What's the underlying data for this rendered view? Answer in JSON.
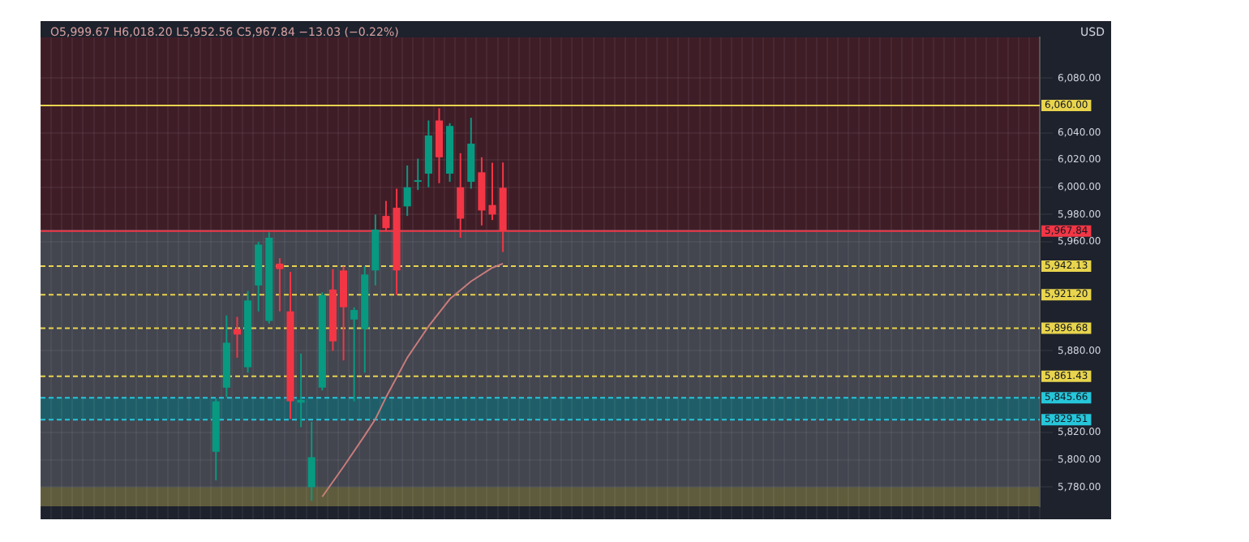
{
  "chart_data": {
    "type": "candlestick",
    "ylabel": "USD",
    "annotations": [
      "O5,999.67 H6,018.20 L5,952.56 C5,967.84 −13.03 (−0.22%)"
    ],
    "categories": [
      null,
      null,
      null,
      null,
      null,
      null,
      null,
      null,
      null,
      null,
      null,
      null,
      null,
      null,
      null,
      null,
      null,
      null,
      null,
      null,
      null,
      null,
      null,
      null,
      null,
      null,
      null,
      null,
      null,
      null,
      null,
      null,
      null,
      null,
      null,
      null,
      null,
      null,
      null,
      null,
      null,
      null,
      null,
      null,
      null,
      null,
      null,
      null,
      null,
      null,
      null,
      null,
      null,
      null,
      null,
      null,
      null,
      null,
      null,
      null,
      null,
      null,
      null,
      null,
      null,
      null,
      null,
      null,
      null,
      null,
      null,
      null,
      null,
      null,
      null,
      null,
      null,
      null,
      null,
      null,
      null,
      null,
      null,
      null,
      null,
      null,
      null,
      null,
      null,
      null,
      null,
      null,
      null,
      null
    ],
    "ohlc": [
      null,
      null,
      null,
      null,
      null,
      null,
      null,
      null,
      null,
      null,
      null,
      null,
      null,
      null,
      null,
      null,
      [
        5806,
        5845,
        5785,
        5843
      ],
      [
        5853,
        5906,
        5846,
        5886
      ],
      [
        5896,
        5905,
        5875,
        5892
      ],
      [
        5868,
        5924,
        5864,
        5917
      ],
      [
        5928,
        5960,
        5909,
        5958
      ],
      [
        5902,
        5967,
        5900,
        5963
      ],
      [
        5944,
        5948,
        5909,
        5940
      ],
      [
        5909,
        5938,
        5830,
        5843
      ],
      [
        5842,
        5878,
        5824,
        5844
      ],
      [
        5780,
        5828,
        5770,
        5802
      ],
      [
        5853,
        5923,
        5851,
        5921
      ],
      [
        5925,
        5940,
        5880,
        5887
      ],
      [
        5939,
        5942,
        5873,
        5912
      ],
      [
        5903,
        5912,
        5843,
        5910
      ],
      [
        5896,
        5942,
        5864,
        5936
      ],
      [
        5939,
        5980,
        5928,
        5969
      ],
      [
        5979,
        5990,
        5968,
        5970
      ],
      [
        5985,
        5999,
        5921,
        5939
      ],
      [
        5986,
        6016,
        5979,
        6000
      ],
      [
        6004,
        6021,
        5998,
        6005
      ],
      [
        6010,
        6049,
        6000,
        6038
      ],
      [
        6049,
        6058,
        6003,
        6022
      ],
      [
        6010,
        6047,
        6004,
        6045
      ],
      [
        6000,
        6025,
        5963,
        5977
      ],
      [
        6004,
        6051,
        5999,
        6032
      ],
      [
        6011,
        6022,
        5972,
        5983
      ],
      [
        5987,
        6018,
        5976,
        5980
      ],
      [
        5999.67,
        6018.2,
        5952.56,
        5967.84
      ],
      null,
      null,
      null,
      null,
      null,
      null,
      null,
      null,
      null,
      null,
      null,
      null,
      null,
      null,
      null,
      null,
      null,
      null,
      null,
      null,
      null,
      null,
      null,
      null,
      null,
      null,
      null,
      null,
      null,
      null,
      null,
      null,
      null,
      null,
      null,
      null,
      null,
      null,
      null,
      null,
      null,
      null,
      null,
      null,
      null,
      null,
      null,
      null,
      null,
      null
    ],
    "colors": [
      null,
      null,
      null,
      null,
      null,
      null,
      null,
      null,
      null,
      null,
      null,
      null,
      null,
      null,
      null,
      null,
      "#089981",
      "#089981",
      "#f23645",
      "#089981",
      "#089981",
      "#089981",
      "#f23645",
      "#f23645",
      "#089981",
      "#089981",
      "#089981",
      "#f23645",
      "#f23645",
      "#089981",
      "#089981",
      "#089981",
      "#f23645",
      "#f23645",
      "#089981",
      "#089981",
      "#089981",
      "#f23645",
      "#089981",
      "#f23645",
      "#089981",
      "#f23645",
      "#f23645",
      "#f23645",
      null,
      null,
      null,
      null,
      null,
      null,
      null,
      null,
      null,
      null,
      null,
      null,
      null,
      null,
      null,
      null,
      null,
      null,
      null,
      null,
      null,
      null,
      null,
      null,
      null,
      null,
      null,
      null,
      null,
      null,
      null,
      null,
      null,
      null,
      null,
      null,
      null,
      null,
      null,
      null,
      null,
      null,
      null,
      null,
      null,
      null,
      null,
      null,
      null,
      null
    ],
    "series": [
      {
        "type": "line",
        "color": "#c77c7c",
        "values": [
          null,
          null,
          null,
          null,
          null,
          null,
          null,
          null,
          null,
          null,
          null,
          null,
          null,
          null,
          null,
          null,
          null,
          null,
          null,
          null,
          null,
          null,
          null,
          null,
          null,
          null,
          5773,
          null,
          5795,
          null,
          5818,
          5830,
          5846,
          null,
          5875,
          null,
          5898,
          null,
          5918,
          null,
          5931,
          null,
          5941,
          5944,
          null,
          null,
          null,
          null,
          null,
          null,
          null,
          null,
          null,
          null,
          null,
          null,
          null,
          null,
          null,
          null,
          null,
          null,
          null,
          null,
          null,
          null,
          null,
          null,
          null,
          null,
          null,
          null,
          null,
          null,
          null,
          null,
          null,
          null,
          null,
          null,
          null,
          null,
          null,
          null,
          null,
          null,
          null,
          null,
          null,
          null,
          null,
          null,
          null,
          null
        ]
      }
    ],
    "ylim": [
      5766,
      6110
    ],
    "yticks": [
      {
        "value": 5780,
        "label": "5,780.00"
      },
      {
        "value": 5800,
        "label": "5,800.00"
      },
      {
        "value": 5820,
        "label": "5,820.00"
      },
      {
        "value": 5880,
        "label": "5,880.00"
      },
      {
        "value": 5960,
        "label": "5,960.00"
      },
      {
        "value": 5980,
        "label": "5,980.00"
      },
      {
        "value": 6000,
        "label": "6,000.00"
      },
      {
        "value": 6020,
        "label": "6,020.00"
      },
      {
        "value": 6040,
        "label": "6,040.00"
      },
      {
        "value": 6080,
        "label": "6,080.00"
      }
    ],
    "bands": [
      {
        "axis": "y",
        "from": 5969,
        "to": 6110,
        "color": "#3f1d27"
      },
      {
        "axis": "y",
        "from": 5766,
        "to": 5969,
        "color": "#43454f"
      },
      {
        "axis": "y",
        "from": 5829.51,
        "to": 5845.66,
        "color": "#1f5e68"
      },
      {
        "axis": "y",
        "from": 5766,
        "to": 5780,
        "color": "#5e5c3c"
      }
    ],
    "ref_lines": [
      {
        "axis": "y",
        "value": 6060,
        "label": "6,060.00",
        "color": "#e8d44d",
        "line_style": "solid"
      },
      {
        "axis": "y",
        "value": 5967.84,
        "label": "5,967.84",
        "color": "#f23645",
        "line_style": "solid"
      },
      {
        "axis": "y",
        "value": 5942.13,
        "label": "5,942.13",
        "color": "#e8d44d",
        "line_style": "dashed"
      },
      {
        "axis": "y",
        "value": 5921.2,
        "label": "5,921.20",
        "color": "#e8d44d",
        "line_style": "dashed"
      },
      {
        "axis": "y",
        "value": 5896.68,
        "label": "5,896.68",
        "color": "#e8d44d",
        "line_style": "dashed"
      },
      {
        "axis": "y",
        "value": 5861.43,
        "label": "5,861.43",
        "color": "#e8d44d",
        "line_style": "dashed"
      },
      {
        "axis": "y",
        "value": 5845.66,
        "label": "5,845.66",
        "color": "#26c6da",
        "line_style": "dashed"
      },
      {
        "axis": "y",
        "value": 5829.51,
        "label": "5,829.51",
        "color": "#26c6da",
        "line_style": "dashed"
      }
    ],
    "grid": true,
    "legend": false,
    "tick_labels": "y"
  }
}
